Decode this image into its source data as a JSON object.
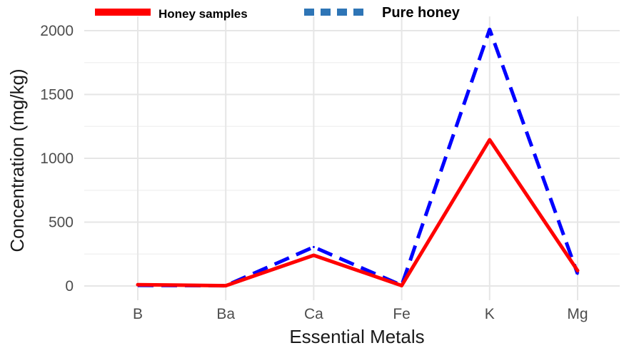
{
  "chart_data": {
    "type": "line",
    "title": "",
    "xlabel": "Essential Metals",
    "ylabel": "Concentration (mg/kg)",
    "categories": [
      "B",
      "Ba",
      "Ca",
      "Fe",
      "K",
      "Mg"
    ],
    "ylim": [
      0,
      2000
    ],
    "yticks": [
      "0",
      "500",
      "1000",
      "1500",
      "2000"
    ],
    "grid": true,
    "legend_position": "top",
    "series": [
      {
        "name": "Honey samples",
        "values": [
          10,
          2,
          240,
          3,
          1145,
          120
        ],
        "color": "#ff0000",
        "dash": "solid"
      },
      {
        "name": "Pure honey",
        "values": [
          5,
          2,
          305,
          5,
          2010,
          95
        ],
        "color": "#0000ff",
        "dash": "dashed",
        "legend_color": "#2e75b6"
      }
    ]
  }
}
